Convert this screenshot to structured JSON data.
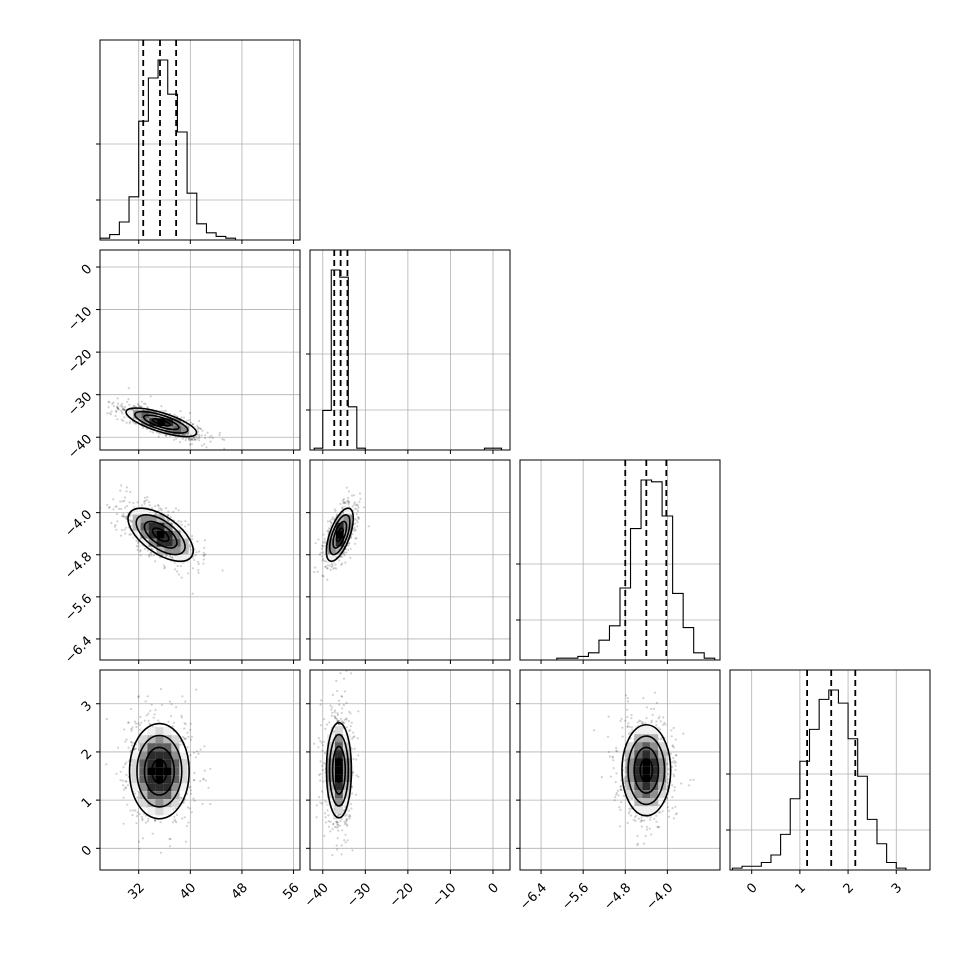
{
  "chart_data": {
    "type": "corner",
    "grid": true,
    "quantiles": [
      0.16,
      0.5,
      0.84
    ],
    "parameters": [
      {
        "range": [
          26,
          57
        ],
        "ticks": [
          32,
          40,
          48,
          56
        ],
        "tick_labels": [
          "32",
          "40",
          "48",
          "56"
        ]
      },
      {
        "range": [
          -43,
          4
        ],
        "ticks": [
          -40,
          -30,
          -20,
          -10,
          0
        ],
        "tick_labels": [
          "−40",
          "−30",
          "−20",
          "−10",
          "0"
        ]
      },
      {
        "range": [
          -6.8,
          -3.0
        ],
        "ticks": [
          -6.4,
          -5.6,
          -4.8,
          -4.0
        ],
        "tick_labels": [
          "−6.4",
          "−5.6",
          "−4.8",
          "−4.0"
        ]
      },
      {
        "range": [
          -0.45,
          3.7
        ],
        "ticks": [
          0,
          1,
          2,
          3
        ],
        "tick_labels": [
          "0",
          "1",
          "2",
          "3"
        ]
      }
    ],
    "histograms": [
      {
        "param": 0,
        "bin_edges": [
          26,
          27.5,
          29,
          30.5,
          32,
          33.5,
          35,
          36.5,
          38,
          39.5,
          41,
          42.5,
          44,
          45.5,
          47,
          48.5,
          50
        ],
        "counts": [
          1,
          3,
          10,
          24,
          66,
          90,
          100,
          81,
          60,
          26,
          9,
          4,
          2,
          1,
          0,
          0
        ],
        "quantile_values": [
          32.7,
          35.3,
          37.8
        ]
      },
      {
        "param": 1,
        "bin_edges": [
          -42,
          -40,
          -38,
          -36,
          -34,
          -32,
          -30,
          -28,
          -26,
          -24,
          -22,
          -20,
          -18,
          -16,
          -14,
          -12,
          -10,
          -8,
          -6,
          -4,
          -2,
          0,
          2,
          4
        ],
        "counts": [
          1,
          22,
          100,
          96,
          24,
          1,
          0,
          0,
          0,
          0,
          0,
          0,
          0,
          0,
          0,
          0,
          0,
          0,
          0,
          0,
          1,
          1,
          0
        ],
        "quantile_values": [
          -37.3,
          -35.8,
          -34.2
        ]
      },
      {
        "param": 2,
        "bin_edges": [
          -6.5,
          -6.3,
          -6.1,
          -5.9,
          -5.7,
          -5.5,
          -5.3,
          -5.1,
          -4.9,
          -4.7,
          -4.5,
          -4.3,
          -4.1,
          -3.9,
          -3.7,
          -3.5,
          -3.3,
          -3.1
        ],
        "counts": [
          0,
          0,
          1,
          1,
          2,
          4,
          11,
          19,
          40,
          73,
          100,
          99,
          80,
          37,
          18,
          4,
          1
        ],
        "quantile_values": [
          -4.8,
          -4.4,
          -4.02
        ]
      },
      {
        "param": 3,
        "bin_edges": [
          -0.4,
          -0.2,
          0.0,
          0.2,
          0.4,
          0.6,
          0.8,
          1.0,
          1.2,
          1.4,
          1.6,
          1.8,
          2.0,
          2.2,
          2.4,
          2.6,
          2.8,
          3.0,
          3.2,
          3.4
        ],
        "counts": [
          1,
          2,
          2,
          4,
          8,
          19,
          38,
          58,
          75,
          91,
          96,
          89,
          70,
          50,
          27,
          14,
          4,
          1,
          0
        ],
        "quantile_values": [
          1.15,
          1.65,
          2.15
        ]
      }
    ],
    "pairs": [
      {
        "x": 0,
        "y": 1,
        "center": [
          35.5,
          -36.5
        ],
        "sd": [
          2.6,
          1.6
        ],
        "rho": -0.72
      },
      {
        "x": 0,
        "y": 2,
        "center": [
          35.4,
          -4.42
        ],
        "sd": [
          2.4,
          0.24
        ],
        "rho": -0.6
      },
      {
        "x": 0,
        "y": 3,
        "center": [
          35.2,
          1.6
        ],
        "sd": [
          2.2,
          0.47
        ],
        "rho": 0.0
      },
      {
        "x": 1,
        "y": 2,
        "center": [
          -36.0,
          -4.42
        ],
        "sd": [
          1.5,
          0.24
        ],
        "rho": 0.62
      },
      {
        "x": 1,
        "y": 3,
        "center": [
          -36.2,
          1.62
        ],
        "sd": [
          1.4,
          0.47
        ],
        "rho": 0.0
      },
      {
        "x": 2,
        "y": 3,
        "center": [
          -4.4,
          1.62
        ],
        "sd": [
          0.22,
          0.45
        ],
        "rho": 0.0
      }
    ]
  }
}
